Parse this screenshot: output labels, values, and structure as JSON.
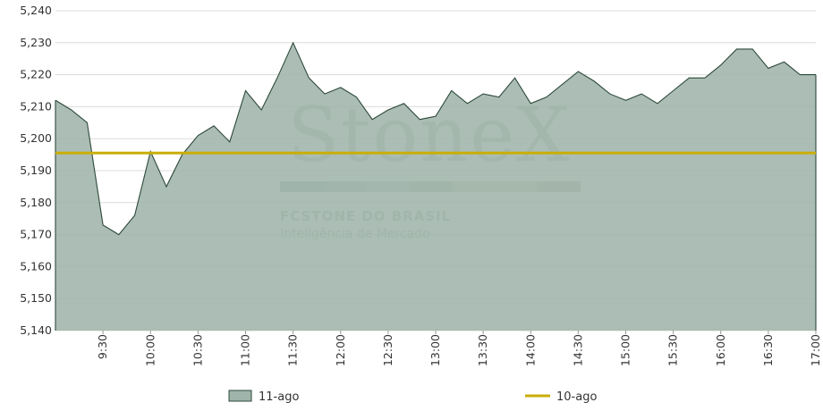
{
  "chart_data": {
    "type": "area",
    "watermark": {
      "logo_text": "StoneX",
      "line1": "FCSTONE DO BRASIL",
      "line2": "Inteligência de Mercado"
    },
    "ylim": [
      5.14,
      5.24
    ],
    "y_ticks": [
      "5,140",
      "5,150",
      "5,160",
      "5,170",
      "5,180",
      "5,190",
      "5,200",
      "5,210",
      "5,220",
      "5,230",
      "5,240"
    ],
    "x_range": [
      "09:00",
      "17:00"
    ],
    "x_ticks": [
      "9:30",
      "10:00",
      "10:30",
      "11:00",
      "11:30",
      "12:00",
      "12:30",
      "13:00",
      "13:30",
      "14:00",
      "14:30",
      "15:00",
      "15:30",
      "16:00",
      "16:30",
      "17:00"
    ],
    "series": [
      {
        "name": "11-ago",
        "type": "area",
        "fill": "#9fb4aa",
        "stroke": "#2e4a3c",
        "x": [
          "09:00",
          "09:10",
          "09:20",
          "09:30",
          "09:40",
          "09:50",
          "10:00",
          "10:10",
          "10:20",
          "10:30",
          "10:40",
          "10:50",
          "11:00",
          "11:10",
          "11:20",
          "11:30",
          "11:40",
          "11:50",
          "12:00",
          "12:10",
          "12:20",
          "12:30",
          "12:40",
          "12:50",
          "13:00",
          "13:10",
          "13:20",
          "13:30",
          "13:40",
          "13:50",
          "14:00",
          "14:10",
          "14:20",
          "14:30",
          "14:40",
          "14:50",
          "15:00",
          "15:10",
          "15:20",
          "15:30",
          "15:40",
          "15:50",
          "16:00",
          "16:10",
          "16:20",
          "16:30",
          "16:40",
          "16:50",
          "17:00"
        ],
        "values": [
          5.212,
          5.209,
          5.205,
          5.173,
          5.17,
          5.176,
          5.196,
          5.185,
          5.195,
          5.201,
          5.204,
          5.199,
          5.215,
          5.209,
          5.219,
          5.23,
          5.219,
          5.214,
          5.216,
          5.213,
          5.206,
          5.209,
          5.211,
          5.206,
          5.207,
          5.215,
          5.211,
          5.214,
          5.213,
          5.219,
          5.211,
          5.213,
          5.217,
          5.221,
          5.218,
          5.214,
          5.212,
          5.214,
          5.211,
          5.215,
          5.219,
          5.219,
          5.223,
          5.228,
          5.228,
          5.222,
          5.224,
          5.22,
          5.22
        ]
      },
      {
        "name": "10-ago",
        "type": "line",
        "color": "#c9ae0a",
        "value": 5.1955
      }
    ],
    "legend": {
      "placement": "bottom",
      "items": [
        "11-ago",
        "10-ago"
      ]
    },
    "grid": "horizontal"
  }
}
